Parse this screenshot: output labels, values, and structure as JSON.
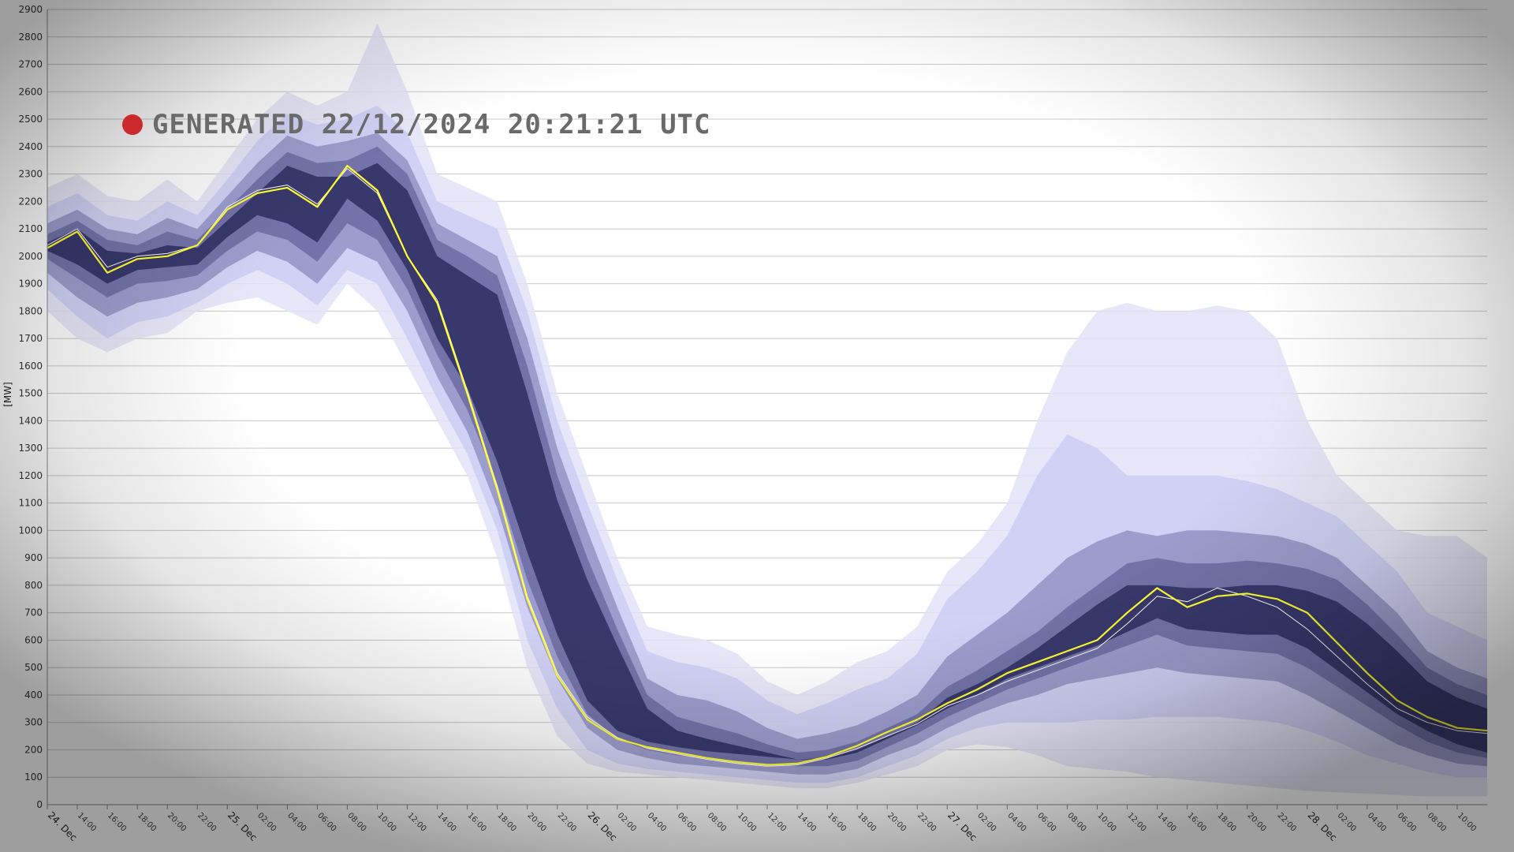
{
  "banner": {
    "text": "GENERATED 22/12/2024 20:21:21 UTC",
    "dot_color": "#cc2a2a"
  },
  "chart_data": {
    "type": "area",
    "ylabel": "[MW]",
    "ylim": [
      0,
      2900
    ],
    "yticks": [
      0,
      100,
      200,
      300,
      400,
      500,
      600,
      700,
      800,
      900,
      1000,
      1100,
      1200,
      1300,
      1400,
      1500,
      1600,
      1700,
      1800,
      1900,
      2000,
      2100,
      2200,
      2300,
      2400,
      2500,
      2600,
      2700,
      2800,
      2900
    ],
    "grid": true,
    "x_hours_range": [
      0,
      98
    ],
    "x_tick_labels": [
      {
        "h": 0,
        "label": "24. Dec",
        "day": true
      },
      {
        "h": 4,
        "label": "14:00"
      },
      {
        "h": 8,
        "label": "16:00"
      },
      {
        "h": 12,
        "label": "18:00"
      },
      {
        "h": 16,
        "label": "20:00"
      },
      {
        "h": 20,
        "label": "22:00"
      },
      {
        "h": 24,
        "label": "25. Dec",
        "day": true
      },
      {
        "h": 28,
        "label": "02:00"
      },
      {
        "h": 32,
        "label": "04:00"
      },
      {
        "h": 36,
        "label": "06:00"
      },
      {
        "h": 40,
        "label": "08:00"
      },
      {
        "h": 44,
        "label": "10:00"
      },
      {
        "h": 48,
        "label": "12:00"
      },
      {
        "h": 52,
        "label": "14:00"
      },
      {
        "h": 56,
        "label": "16:00"
      },
      {
        "h": 60,
        "label": "18:00"
      },
      {
        "h": 64,
        "label": "20:00"
      },
      {
        "h": 68,
        "label": "22:00"
      },
      {
        "h": 72,
        "label": "26. Dec",
        "day": true
      },
      {
        "h": 76,
        "label": "02:00"
      },
      {
        "h": 80,
        "label": "04:00"
      },
      {
        "h": 84,
        "label": "06:00"
      },
      {
        "h": 88,
        "label": "08:00"
      },
      {
        "h": 92,
        "label": "10:00"
      },
      {
        "h": 96,
        "label": "12:00"
      },
      {
        "h": 100,
        "label": "14:00"
      },
      {
        "h": 104,
        "label": "16:00"
      },
      {
        "h": 108,
        "label": "18:00"
      },
      {
        "h": 112,
        "label": "20:00"
      },
      {
        "h": 116,
        "label": "22:00"
      },
      {
        "h": 120,
        "label": "27. Dec",
        "day": true
      },
      {
        "h": 124,
        "label": "02:00"
      },
      {
        "h": 128,
        "label": "04:00"
      },
      {
        "h": 132,
        "label": "06:00"
      },
      {
        "h": 136,
        "label": "08:00"
      },
      {
        "h": 140,
        "label": "10:00"
      },
      {
        "h": 144,
        "label": "12:00"
      },
      {
        "h": 148,
        "label": "14:00"
      },
      {
        "h": 152,
        "label": "16:00"
      },
      {
        "h": 156,
        "label": "18:00"
      },
      {
        "h": 160,
        "label": "20:00"
      },
      {
        "h": 164,
        "label": "22:00"
      },
      {
        "h": 168,
        "label": "28. Dec",
        "day": true
      },
      {
        "h": 172,
        "label": "02:00"
      },
      {
        "h": 176,
        "label": "04:00"
      },
      {
        "h": 180,
        "label": "06:00"
      },
      {
        "h": 184,
        "label": "08:00"
      },
      {
        "h": 188,
        "label": "10:00"
      }
    ],
    "x_hours": [
      0,
      4,
      8,
      12,
      16,
      20,
      24,
      28,
      32,
      36,
      40,
      44,
      48,
      52,
      56,
      60,
      64,
      68,
      72,
      76,
      80,
      84,
      88,
      92,
      96,
      100,
      104,
      108,
      112,
      116,
      120,
      124,
      128,
      132,
      136,
      140,
      144,
      148,
      152,
      156,
      160,
      164,
      168,
      172,
      176,
      180,
      184,
      188,
      192
    ],
    "bands": [
      {
        "lo": [
          1800,
          1700,
          1650,
          1700,
          1720,
          1800,
          1830,
          1850,
          1800,
          1750,
          1900,
          1800,
          1600,
          1400,
          1200,
          900,
          500,
          250,
          150,
          120,
          110,
          100,
          90,
          80,
          70,
          60,
          60,
          80,
          110,
          140,
          200,
          220,
          210,
          180,
          140,
          130,
          120,
          100,
          90,
          80,
          70,
          60,
          50,
          45,
          40,
          35,
          30,
          30,
          30
        ],
        "hi": [
          2250,
          2300,
          2220,
          2200,
          2280,
          2200,
          2350,
          2500,
          2600,
          2550,
          2600,
          2850,
          2600,
          2300,
          2250,
          2200,
          1900,
          1500,
          1200,
          900,
          650,
          620,
          600,
          550,
          450,
          400,
          450,
          520,
          560,
          650,
          850,
          950,
          1100,
          1400,
          1650,
          1800,
          1830,
          1800,
          1800,
          1820,
          1800,
          1700,
          1400,
          1200,
          1100,
          1000,
          980,
          980,
          900
        ],
        "color": "#e3e3f8"
      },
      {
        "lo": [
          1880,
          1780,
          1700,
          1760,
          1780,
          1830,
          1900,
          1950,
          1900,
          1820,
          1950,
          1900,
          1700,
          1480,
          1280,
          1000,
          600,
          350,
          200,
          150,
          130,
          120,
          110,
          100,
          90,
          80,
          80,
          100,
          140,
          180,
          240,
          280,
          300,
          300,
          300,
          310,
          310,
          320,
          320,
          320,
          310,
          300,
          270,
          230,
          180,
          150,
          120,
          100,
          100
        ],
        "hi": [
          2180,
          2230,
          2150,
          2130,
          2200,
          2150,
          2280,
          2420,
          2520,
          2480,
          2500,
          2550,
          2450,
          2200,
          2150,
          2100,
          1800,
          1400,
          1100,
          820,
          560,
          520,
          500,
          460,
          380,
          330,
          370,
          420,
          460,
          550,
          750,
          850,
          980,
          1200,
          1350,
          1300,
          1200,
          1200,
          1200,
          1200,
          1180,
          1150,
          1100,
          1050,
          950,
          850,
          700,
          650,
          600
        ],
        "color": "#cdcdf4"
      },
      {
        "lo": [
          1940,
          1850,
          1780,
          1830,
          1850,
          1880,
          1960,
          2020,
          1980,
          1900,
          2030,
          1980,
          1800,
          1560,
          1360,
          1080,
          720,
          460,
          280,
          200,
          170,
          150,
          140,
          130,
          120,
          110,
          110,
          130,
          180,
          220,
          280,
          330,
          370,
          400,
          440,
          460,
          480,
          500,
          480,
          470,
          460,
          450,
          400,
          340,
          280,
          220,
          180,
          150,
          140
        ],
        "hi": [
          2120,
          2170,
          2100,
          2080,
          2140,
          2100,
          2220,
          2340,
          2440,
          2400,
          2420,
          2450,
          2350,
          2120,
          2060,
          2000,
          1700,
          1300,
          1000,
          720,
          460,
          400,
          380,
          340,
          280,
          240,
          260,
          290,
          340,
          400,
          540,
          620,
          700,
          800,
          900,
          960,
          1000,
          980,
          1000,
          1000,
          990,
          980,
          950,
          900,
          800,
          700,
          560,
          500,
          460
        ],
        "color": "#9494c6"
      },
      {
        "lo": [
          1990,
          1920,
          1850,
          1900,
          1910,
          1930,
          2020,
          2090,
          2060,
          1980,
          2120,
          2060,
          1880,
          1640,
          1440,
          1170,
          820,
          540,
          330,
          240,
          200,
          180,
          170,
          160,
          150,
          140,
          140,
          160,
          210,
          260,
          320,
          370,
          420,
          460,
          500,
          540,
          580,
          620,
          580,
          570,
          560,
          550,
          500,
          430,
          360,
          290,
          230,
          190,
          170
        ],
        "hi": [
          2080,
          2130,
          2060,
          2040,
          2090,
          2060,
          2170,
          2280,
          2380,
          2340,
          2350,
          2400,
          2300,
          2060,
          2000,
          1930,
          1600,
          1200,
          900,
          640,
          400,
          320,
          290,
          260,
          220,
          190,
          200,
          230,
          280,
          330,
          430,
          490,
          560,
          630,
          720,
          800,
          880,
          900,
          880,
          880,
          890,
          880,
          860,
          820,
          730,
          620,
          500,
          440,
          400
        ],
        "color": "#6c6ca2"
      },
      {
        "lo": [
          2020,
          1970,
          1900,
          1950,
          1960,
          1970,
          2070,
          2150,
          2120,
          2050,
          2210,
          2130,
          1950,
          1700,
          1520,
          1250,
          920,
          620,
          380,
          270,
          230,
          210,
          195,
          185,
          175,
          165,
          165,
          190,
          240,
          290,
          350,
          400,
          460,
          500,
          540,
          580,
          630,
          680,
          640,
          630,
          620,
          620,
          570,
          490,
          410,
          330,
          270,
          220,
          190
        ],
        "hi": [
          2050,
          2100,
          2020,
          2010,
          2040,
          2030,
          2130,
          2230,
          2330,
          2290,
          2290,
          2340,
          2240,
          2000,
          1930,
          1860,
          1500,
          1110,
          820,
          580,
          350,
          270,
          240,
          215,
          190,
          165,
          170,
          200,
          250,
          300,
          390,
          440,
          500,
          570,
          650,
          730,
          800,
          800,
          790,
          790,
          800,
          800,
          780,
          740,
          660,
          560,
          450,
          390,
          350
        ],
        "color": "#2e2e62"
      }
    ],
    "series": [
      {
        "values": [
          2030,
          2090,
          1940,
          1990,
          2000,
          2040,
          2170,
          2230,
          2250,
          2180,
          2330,
          2240,
          2000,
          1830,
          1500,
          1150,
          750,
          470,
          310,
          240,
          210,
          190,
          170,
          155,
          145,
          150,
          175,
          215,
          265,
          310,
          370,
          420,
          480,
          520,
          560,
          600,
          700,
          790,
          720,
          760,
          770,
          750,
          700,
          590,
          480,
          380,
          320,
          280,
          270
        ],
        "color": "#ffff33",
        "width": 2.2
      },
      {
        "values": [
          2040,
          2100,
          1960,
          2000,
          2010,
          2040,
          2180,
          2240,
          2260,
          2190,
          2320,
          2230,
          2000,
          1840,
          1510,
          1160,
          760,
          480,
          320,
          245,
          205,
          185,
          165,
          150,
          140,
          145,
          170,
          205,
          250,
          295,
          360,
          400,
          450,
          490,
          530,
          570,
          660,
          760,
          740,
          790,
          760,
          720,
          640,
          540,
          440,
          350,
          300,
          270,
          260
        ],
        "color": "#ffffff",
        "width": 1
      }
    ]
  }
}
